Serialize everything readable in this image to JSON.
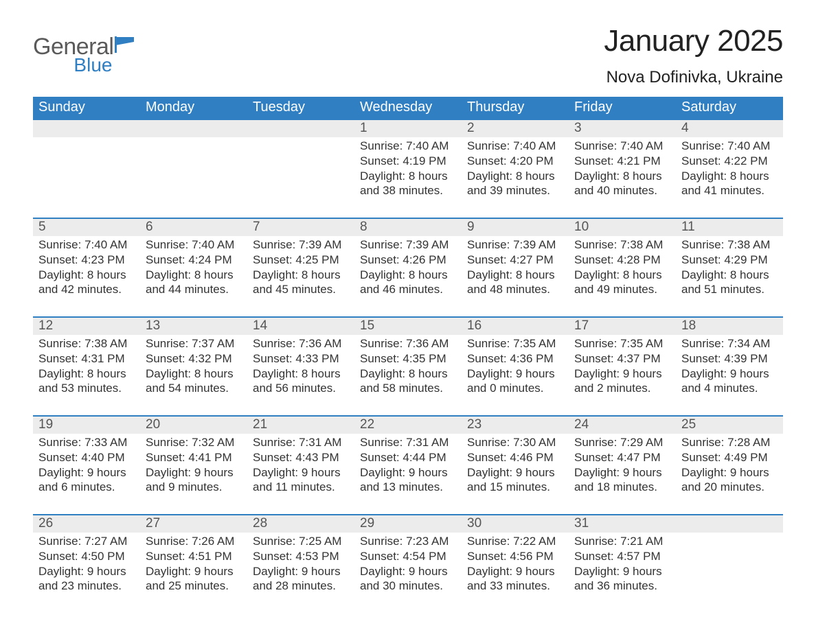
{
  "logo": {
    "word1": "General",
    "word2": "Blue"
  },
  "title": "January 2025",
  "location": "Nova Dofinivka, Ukraine",
  "colors": {
    "header_blue": "#2f7fc2",
    "row_bg": "#ececec",
    "text": "#333333",
    "logo_gray": "#5a5a5a"
  },
  "weekdays": [
    "Sunday",
    "Monday",
    "Tuesday",
    "Wednesday",
    "Thursday",
    "Friday",
    "Saturday"
  ],
  "weeks": [
    {
      "days": [
        {
          "num": "",
          "lines": []
        },
        {
          "num": "",
          "lines": []
        },
        {
          "num": "",
          "lines": []
        },
        {
          "num": "1",
          "lines": [
            "Sunrise: 7:40 AM",
            "Sunset: 4:19 PM",
            "Daylight: 8 hours and 38 minutes."
          ]
        },
        {
          "num": "2",
          "lines": [
            "Sunrise: 7:40 AM",
            "Sunset: 4:20 PM",
            "Daylight: 8 hours and 39 minutes."
          ]
        },
        {
          "num": "3",
          "lines": [
            "Sunrise: 7:40 AM",
            "Sunset: 4:21 PM",
            "Daylight: 8 hours and 40 minutes."
          ]
        },
        {
          "num": "4",
          "lines": [
            "Sunrise: 7:40 AM",
            "Sunset: 4:22 PM",
            "Daylight: 8 hours and 41 minutes."
          ]
        }
      ]
    },
    {
      "days": [
        {
          "num": "5",
          "lines": [
            "Sunrise: 7:40 AM",
            "Sunset: 4:23 PM",
            "Daylight: 8 hours and 42 minutes."
          ]
        },
        {
          "num": "6",
          "lines": [
            "Sunrise: 7:40 AM",
            "Sunset: 4:24 PM",
            "Daylight: 8 hours and 44 minutes."
          ]
        },
        {
          "num": "7",
          "lines": [
            "Sunrise: 7:39 AM",
            "Sunset: 4:25 PM",
            "Daylight: 8 hours and 45 minutes."
          ]
        },
        {
          "num": "8",
          "lines": [
            "Sunrise: 7:39 AM",
            "Sunset: 4:26 PM",
            "Daylight: 8 hours and 46 minutes."
          ]
        },
        {
          "num": "9",
          "lines": [
            "Sunrise: 7:39 AM",
            "Sunset: 4:27 PM",
            "Daylight: 8 hours and 48 minutes."
          ]
        },
        {
          "num": "10",
          "lines": [
            "Sunrise: 7:38 AM",
            "Sunset: 4:28 PM",
            "Daylight: 8 hours and 49 minutes."
          ]
        },
        {
          "num": "11",
          "lines": [
            "Sunrise: 7:38 AM",
            "Sunset: 4:29 PM",
            "Daylight: 8 hours and 51 minutes."
          ]
        }
      ]
    },
    {
      "days": [
        {
          "num": "12",
          "lines": [
            "Sunrise: 7:38 AM",
            "Sunset: 4:31 PM",
            "Daylight: 8 hours and 53 minutes."
          ]
        },
        {
          "num": "13",
          "lines": [
            "Sunrise: 7:37 AM",
            "Sunset: 4:32 PM",
            "Daylight: 8 hours and 54 minutes."
          ]
        },
        {
          "num": "14",
          "lines": [
            "Sunrise: 7:36 AM",
            "Sunset: 4:33 PM",
            "Daylight: 8 hours and 56 minutes."
          ]
        },
        {
          "num": "15",
          "lines": [
            "Sunrise: 7:36 AM",
            "Sunset: 4:35 PM",
            "Daylight: 8 hours and 58 minutes."
          ]
        },
        {
          "num": "16",
          "lines": [
            "Sunrise: 7:35 AM",
            "Sunset: 4:36 PM",
            "Daylight: 9 hours and 0 minutes."
          ]
        },
        {
          "num": "17",
          "lines": [
            "Sunrise: 7:35 AM",
            "Sunset: 4:37 PM",
            "Daylight: 9 hours and 2 minutes."
          ]
        },
        {
          "num": "18",
          "lines": [
            "Sunrise: 7:34 AM",
            "Sunset: 4:39 PM",
            "Daylight: 9 hours and 4 minutes."
          ]
        }
      ]
    },
    {
      "days": [
        {
          "num": "19",
          "lines": [
            "Sunrise: 7:33 AM",
            "Sunset: 4:40 PM",
            "Daylight: 9 hours and 6 minutes."
          ]
        },
        {
          "num": "20",
          "lines": [
            "Sunrise: 7:32 AM",
            "Sunset: 4:41 PM",
            "Daylight: 9 hours and 9 minutes."
          ]
        },
        {
          "num": "21",
          "lines": [
            "Sunrise: 7:31 AM",
            "Sunset: 4:43 PM",
            "Daylight: 9 hours and 11 minutes."
          ]
        },
        {
          "num": "22",
          "lines": [
            "Sunrise: 7:31 AM",
            "Sunset: 4:44 PM",
            "Daylight: 9 hours and 13 minutes."
          ]
        },
        {
          "num": "23",
          "lines": [
            "Sunrise: 7:30 AM",
            "Sunset: 4:46 PM",
            "Daylight: 9 hours and 15 minutes."
          ]
        },
        {
          "num": "24",
          "lines": [
            "Sunrise: 7:29 AM",
            "Sunset: 4:47 PM",
            "Daylight: 9 hours and 18 minutes."
          ]
        },
        {
          "num": "25",
          "lines": [
            "Sunrise: 7:28 AM",
            "Sunset: 4:49 PM",
            "Daylight: 9 hours and 20 minutes."
          ]
        }
      ]
    },
    {
      "days": [
        {
          "num": "26",
          "lines": [
            "Sunrise: 7:27 AM",
            "Sunset: 4:50 PM",
            "Daylight: 9 hours and 23 minutes."
          ]
        },
        {
          "num": "27",
          "lines": [
            "Sunrise: 7:26 AM",
            "Sunset: 4:51 PM",
            "Daylight: 9 hours and 25 minutes."
          ]
        },
        {
          "num": "28",
          "lines": [
            "Sunrise: 7:25 AM",
            "Sunset: 4:53 PM",
            "Daylight: 9 hours and 28 minutes."
          ]
        },
        {
          "num": "29",
          "lines": [
            "Sunrise: 7:23 AM",
            "Sunset: 4:54 PM",
            "Daylight: 9 hours and 30 minutes."
          ]
        },
        {
          "num": "30",
          "lines": [
            "Sunrise: 7:22 AM",
            "Sunset: 4:56 PM",
            "Daylight: 9 hours and 33 minutes."
          ]
        },
        {
          "num": "31",
          "lines": [
            "Sunrise: 7:21 AM",
            "Sunset: 4:57 PM",
            "Daylight: 9 hours and 36 minutes."
          ]
        },
        {
          "num": "",
          "lines": []
        }
      ]
    }
  ]
}
